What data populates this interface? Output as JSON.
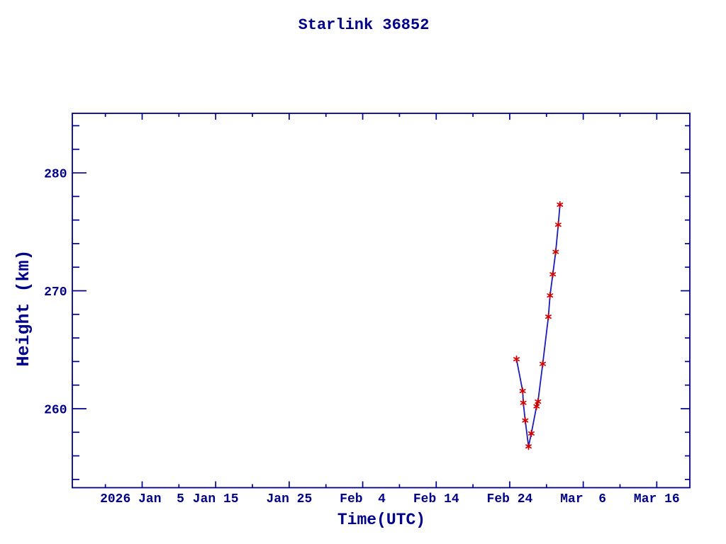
{
  "chart_data": {
    "type": "line",
    "title": "Starlink 36852",
    "xlabel": "Time(UTC)",
    "ylabel": "Height (km)",
    "grid": "off",
    "legend": "none",
    "x_axis": {
      "unit": "date (UTC), t = days since 2025 Dec 31 00:00",
      "range_t": [
        -4.5,
        79.5
      ],
      "major_ticks": [
        {
          "t": 5,
          "label": "2026 Jan  5"
        },
        {
          "t": 15,
          "label": "Jan 15"
        },
        {
          "t": 25,
          "label": "Jan 25"
        },
        {
          "t": 35,
          "label": "Feb  4"
        },
        {
          "t": 45,
          "label": "Feb 14"
        },
        {
          "t": 55,
          "label": "Feb 24"
        },
        {
          "t": 65,
          "label": "Mar  6"
        },
        {
          "t": 75,
          "label": "Mar 16"
        }
      ],
      "minor_ticks_t": [
        0,
        10,
        20,
        30,
        40,
        50,
        60,
        70
      ]
    },
    "y_axis": {
      "unit": "km",
      "range_km": [
        253.3,
        285.05
      ],
      "major_ticks": [
        {
          "km": 260,
          "label": "260"
        },
        {
          "km": 270,
          "label": "270"
        },
        {
          "km": 280,
          "label": "280"
        }
      ],
      "minor_ticks_km": [
        254,
        256,
        258,
        262,
        264,
        266,
        268,
        272,
        274,
        276,
        278,
        282,
        284
      ]
    },
    "series": [
      {
        "name": "orbit-height",
        "marker": "red-asterisk",
        "points": [
          {
            "t": 55.92,
            "date": "Feb 24.9",
            "height_km": 264.2
          },
          {
            "t": 56.76,
            "date": "Feb 25.8",
            "height_km": 261.5
          },
          {
            "t": 56.85,
            "date": "Feb 25.9",
            "height_km": 260.5
          },
          {
            "t": 57.11,
            "date": "Feb 26.1",
            "height_km": 259.0
          },
          {
            "t": 57.56,
            "date": "Feb 26.6",
            "height_km": 256.8
          },
          {
            "t": 57.94,
            "date": "Feb 26.9",
            "height_km": 257.9
          },
          {
            "t": 58.65,
            "date": "Feb 27.7",
            "height_km": 260.2
          },
          {
            "t": 58.84,
            "date": "Feb 27.8",
            "height_km": 260.6
          },
          {
            "t": 59.49,
            "date": "Feb 28.5",
            "height_km": 263.8
          },
          {
            "t": 60.26,
            "date": "Mar 1.3",
            "height_km": 267.8
          },
          {
            "t": 60.48,
            "date": "Mar 1.5",
            "height_km": 269.6
          },
          {
            "t": 60.86,
            "date": "Mar 1.9",
            "height_km": 271.4
          },
          {
            "t": 61.25,
            "date": "Mar 2.3",
            "height_km": 273.3
          },
          {
            "t": 61.6,
            "date": "Mar 2.6",
            "height_km": 275.6
          },
          {
            "t": 61.83,
            "date": "Mar 2.8",
            "height_km": 277.3
          }
        ]
      }
    ],
    "colors": {
      "background": "#ffffff",
      "axis": "#00008b",
      "text": "#00008b",
      "line": "#1c1cb8",
      "marker": "#d40000"
    }
  }
}
